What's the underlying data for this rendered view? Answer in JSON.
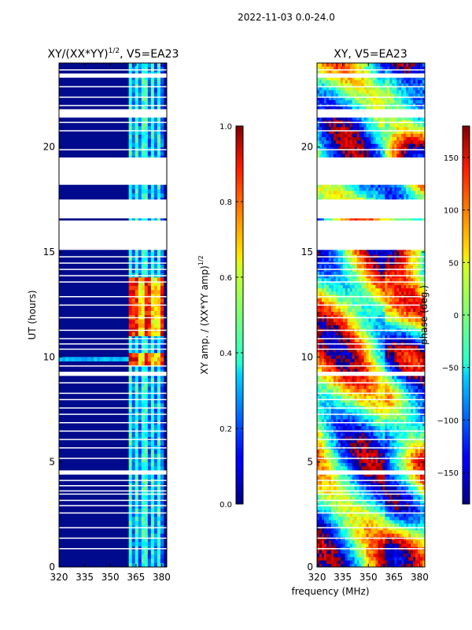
{
  "chart_data": {
    "suptitle": "2022-11-03 0.0-24.0",
    "xlabel": "frequency (MHz)",
    "panels": [
      {
        "type": "heatmap",
        "title": "XY/(XX*YY)^1/2, V5=EA23",
        "title_main": "XY/(XX*YY)",
        "title_exp": "1/2",
        "title_tail": ", V5=EA23",
        "ylabel": "UT (hours)",
        "xlim": [
          320,
          383
        ],
        "ylim": [
          0,
          24
        ],
        "xticks": [
          "320",
          "335",
          "350",
          "365",
          "380"
        ],
        "yticks": [
          "0",
          "5",
          "10",
          "15",
          "20"
        ],
        "colorbar": {
          "label": "XY amp. / (XX*YY amp)^1/2",
          "label_main": "XY amp. / (XX*YY amp)",
          "label_exp": "1/2",
          "range": [
            0,
            1
          ],
          "ticks": [
            "0.0",
            "0.2",
            "0.4",
            "0.6",
            "0.8",
            "1.0"
          ]
        }
      },
      {
        "type": "heatmap",
        "title": "XY, V5=EA23",
        "xlim": [
          320,
          383
        ],
        "ylim": [
          0,
          24
        ],
        "xticks": [
          "320",
          "335",
          "350",
          "365",
          "380"
        ],
        "yticks": [
          "0",
          "5",
          "10",
          "15",
          "20"
        ],
        "colorbar": {
          "label": "phase (deg.)",
          "range": [
            -180,
            180
          ],
          "ticks": [
            "−150",
            "−100",
            "−50",
            "0",
            "50",
            "100",
            "150"
          ]
        }
      }
    ],
    "blank_ut_ranges": [
      [
        16.6,
        17.5
      ],
      [
        18.2,
        19.5
      ],
      [
        21.4,
        21.8
      ],
      [
        23.3,
        23.5
      ],
      [
        4.4,
        4.6
      ],
      [
        9.1,
        9.3
      ]
    ]
  }
}
